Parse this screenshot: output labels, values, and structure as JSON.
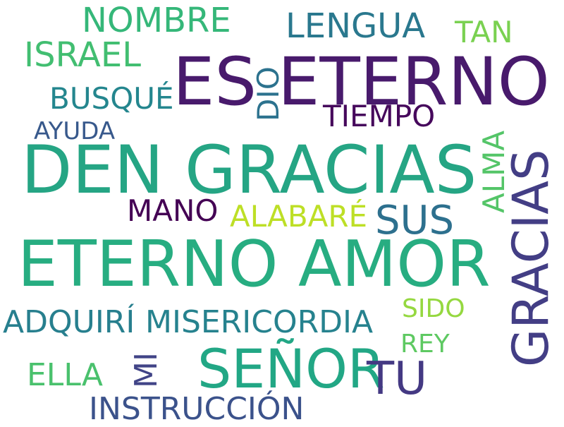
{
  "words": {
    "es_eterno": {
      "text": "ES ETERNO",
      "color": "#481a6c"
    },
    "den_gracias": {
      "text": "DEN GRACIAS",
      "color": "#25a584"
    },
    "eterno_amor": {
      "text": "ETERNO AMOR",
      "color": "#27ad81"
    },
    "gracias": {
      "text": "GRACIAS",
      "color": "#433e85"
    },
    "senor": {
      "text": "SEÑOR",
      "color": "#22a785"
    },
    "nombre": {
      "text": "NOMBRE",
      "color": "#35b779"
    },
    "lengua": {
      "text": "LENGUA",
      "color": "#2a788e"
    },
    "tan": {
      "text": "TAN",
      "color": "#7ad151"
    },
    "israel": {
      "text": "ISRAEL",
      "color": "#42be71"
    },
    "dio": {
      "text": "DIO",
      "color": "#2c728e"
    },
    "busque": {
      "text": "BUSQUÉ",
      "color": "#24868e"
    },
    "tiempo": {
      "text": "TIEMPO",
      "color": "#46085c"
    },
    "ayuda": {
      "text": "AYUDA",
      "color": "#38598c"
    },
    "alma": {
      "text": "ALMA",
      "color": "#54c568"
    },
    "mano": {
      "text": "MANO",
      "color": "#440154"
    },
    "alabare": {
      "text": "ALABARÉ",
      "color": "#bddf26"
    },
    "sus": {
      "text": "SUS",
      "color": "#2d708e"
    },
    "adquiri": {
      "text": "ADQUIRÍ",
      "color": "#277f8e"
    },
    "misericordia": {
      "text": "MISERICORDIA",
      "color": "#26828e"
    },
    "sido": {
      "text": "SIDO",
      "color": "#95d840"
    },
    "rey": {
      "text": "REY",
      "color": "#5ec962"
    },
    "ella": {
      "text": "ELLA",
      "color": "#4ac16d"
    },
    "mi": {
      "text": "MI",
      "color": "#414487"
    },
    "tu": {
      "text": "TU",
      "color": "#443983"
    },
    "instruccion": {
      "text": "INSTRUCCIÓN",
      "color": "#3b528b"
    }
  }
}
